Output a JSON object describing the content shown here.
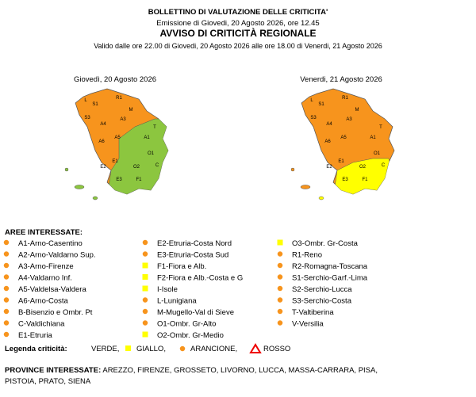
{
  "header": {
    "title": "BOLLETTINO DI VALUTAZIONE DELLE CRITICITA'",
    "emission": "Emissione di Giovedi, 20 Agosto 2026, ore 12.45",
    "subtitle": "AVVISO DI CRITICITÀ REGIONALE",
    "validity": "Valido dalle ore 22.00 di Giovedi, 20 Agosto 2026 alle ore 18.00 di Venerdi, 21 Agosto 2026"
  },
  "maps": [
    {
      "title": "Giovedì, 20 Agosto 2026",
      "labels": [
        "S1",
        "S3",
        "R1",
        "L",
        "T",
        "A3",
        "A4",
        "M",
        "A1",
        "A5",
        "A6",
        "E1",
        "E2",
        "F1",
        "O1",
        "O2",
        "E3",
        "C"
      ]
    },
    {
      "title": "Venerdi, 21 Agosto 2026",
      "labels": [
        "S1",
        "S3",
        "R1",
        "L",
        "T",
        "A3",
        "A4",
        "M",
        "A1",
        "A5",
        "A6",
        "E1",
        "E2",
        "F1",
        "O1",
        "O2",
        "E3",
        "C"
      ]
    }
  ],
  "areas": {
    "title": "AREE INTERESSATE:",
    "columns": [
      [
        "A1-Arno-Casentino",
        "A2-Arno-Valdarno Sup.",
        "A3-Arno-Firenze",
        "A4-Valdarno Inf.",
        "A5-Valdelsa-Valdera",
        "A6-Arno-Costa",
        "B-Bisenzio e Ombr. Pt",
        "C-Valdichiana",
        "E1-Etruria"
      ],
      [
        "E2-Etruria-Costa Nord",
        "E3-Etruria-Costa Sud",
        "F1-Fiora e Alb.",
        "F2-Fiora e Alb.-Costa e G",
        "I-Isole",
        "L-Lunigiana",
        "M-Mugello-Val di Sieve",
        "O1-Ombr. Gr-Alto",
        "O2-Ombr. Gr-Medio"
      ],
      [
        "O3-Ombr. Gr-Costa",
        "R1-Reno",
        "R2-Romagna-Toscana",
        "S1-Serchio-Garf.-Lima",
        "S2-Serchio-Lucca",
        "S3-Serchio-Costa",
        "T-Valtiberina",
        "V-Versilia"
      ]
    ]
  },
  "legend": {
    "title": "Legenda criticità:",
    "items": [
      "VERDE,",
      "GIALLO,",
      "ARANCIONE,",
      "ROSSO"
    ]
  },
  "provinces": {
    "title": "PROVINCE INTERESSATE:",
    "list": "AREZZO, FIRENZE, GROSSETO, LIVORNO, LUCCA, MASSA-CARRARA, PISA,",
    "list2": "PISTOIA, PRATO, SIENA"
  }
}
